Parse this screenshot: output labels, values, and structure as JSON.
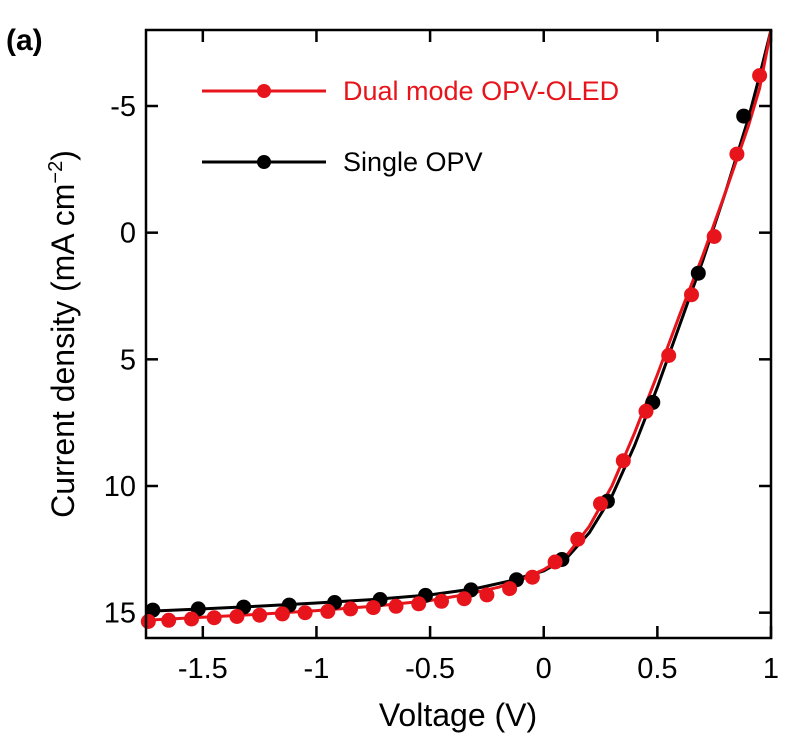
{
  "chart_data": {
    "type": "line",
    "panel_label": "(a)",
    "xlabel": "Voltage (V)",
    "ylabel_main": "Current density (mA cm",
    "ylabel_sup": "−2",
    "ylabel_close": ")",
    "xlim": [
      -1.75,
      1.0
    ],
    "ylim": [
      16.0,
      -8.0
    ],
    "y_inverted": true,
    "x_ticks": [
      -1.5,
      -1,
      -0.5,
      0,
      0.5,
      1
    ],
    "x_tick_labels": [
      "-1.5",
      "-1",
      "-0.5",
      "0",
      "0.5",
      "1"
    ],
    "y_ticks": [
      -5,
      0,
      5,
      10,
      15
    ],
    "y_tick_labels": [
      "-5",
      "0",
      "5",
      "10",
      "15"
    ],
    "grid": false,
    "legend_position": "top-left",
    "series": [
      {
        "name": "Dual mode OPV-OLED",
        "color": "#e8141b",
        "line": [
          [
            -1.75,
            15.3
          ],
          [
            -1.5,
            15.18
          ],
          [
            -1.25,
            15.06
          ],
          [
            -1.0,
            14.92
          ],
          [
            -0.75,
            14.75
          ],
          [
            -0.5,
            14.52
          ],
          [
            -0.35,
            14.3
          ],
          [
            -0.2,
            14.0
          ],
          [
            -0.1,
            13.7
          ],
          [
            0.0,
            13.3
          ],
          [
            0.1,
            12.75
          ],
          [
            0.2,
            11.6
          ],
          [
            0.3,
            10.0
          ],
          [
            0.4,
            7.9
          ],
          [
            0.5,
            5.6
          ],
          [
            0.6,
            3.2
          ],
          [
            0.7,
            0.9
          ],
          [
            0.8,
            -1.6
          ],
          [
            0.9,
            -4.2
          ],
          [
            0.95,
            -5.7
          ],
          [
            1.0,
            -8.0
          ]
        ],
        "points": [
          [
            -1.74,
            15.35
          ],
          [
            -1.65,
            15.3
          ],
          [
            -1.55,
            15.25
          ],
          [
            -1.45,
            15.2
          ],
          [
            -1.35,
            15.15
          ],
          [
            -1.25,
            15.1
          ],
          [
            -1.15,
            15.05
          ],
          [
            -1.05,
            15.0
          ],
          [
            -0.95,
            14.95
          ],
          [
            -0.85,
            14.85
          ],
          [
            -0.75,
            14.8
          ],
          [
            -0.65,
            14.75
          ],
          [
            -0.55,
            14.65
          ],
          [
            -0.45,
            14.55
          ],
          [
            -0.35,
            14.45
          ],
          [
            -0.25,
            14.3
          ],
          [
            -0.15,
            14.05
          ],
          [
            -0.05,
            13.6
          ],
          [
            0.05,
            13.0
          ],
          [
            0.15,
            12.1
          ],
          [
            0.25,
            10.7
          ],
          [
            0.35,
            9.0
          ],
          [
            0.45,
            7.05
          ],
          [
            0.55,
            4.85
          ],
          [
            0.65,
            2.45
          ],
          [
            0.75,
            0.15
          ],
          [
            0.85,
            -3.1
          ],
          [
            0.95,
            -6.2
          ]
        ]
      },
      {
        "name": "Single OPV",
        "color": "#000000",
        "line": [
          [
            -1.75,
            14.95
          ],
          [
            -1.5,
            14.85
          ],
          [
            -1.25,
            14.74
          ],
          [
            -1.0,
            14.62
          ],
          [
            -0.75,
            14.48
          ],
          [
            -0.5,
            14.3
          ],
          [
            -0.3,
            14.05
          ],
          [
            -0.15,
            13.75
          ],
          [
            0.0,
            13.35
          ],
          [
            0.1,
            12.85
          ],
          [
            0.2,
            11.85
          ],
          [
            0.3,
            10.4
          ],
          [
            0.4,
            8.4
          ],
          [
            0.5,
            6.1
          ],
          [
            0.6,
            3.6
          ],
          [
            0.7,
            1.1
          ],
          [
            0.8,
            -1.6
          ],
          [
            0.9,
            -4.5
          ],
          [
            0.95,
            -6.2
          ],
          [
            1.0,
            -8.0
          ]
        ],
        "points": [
          [
            -1.72,
            14.9
          ],
          [
            -1.52,
            14.85
          ],
          [
            -1.32,
            14.78
          ],
          [
            -1.12,
            14.7
          ],
          [
            -0.92,
            14.6
          ],
          [
            -0.72,
            14.48
          ],
          [
            -0.52,
            14.32
          ],
          [
            -0.32,
            14.1
          ],
          [
            -0.12,
            13.7
          ],
          [
            0.08,
            12.9
          ],
          [
            0.28,
            10.6
          ],
          [
            0.48,
            6.7
          ],
          [
            0.68,
            1.6
          ],
          [
            0.88,
            -4.6
          ]
        ]
      }
    ]
  }
}
